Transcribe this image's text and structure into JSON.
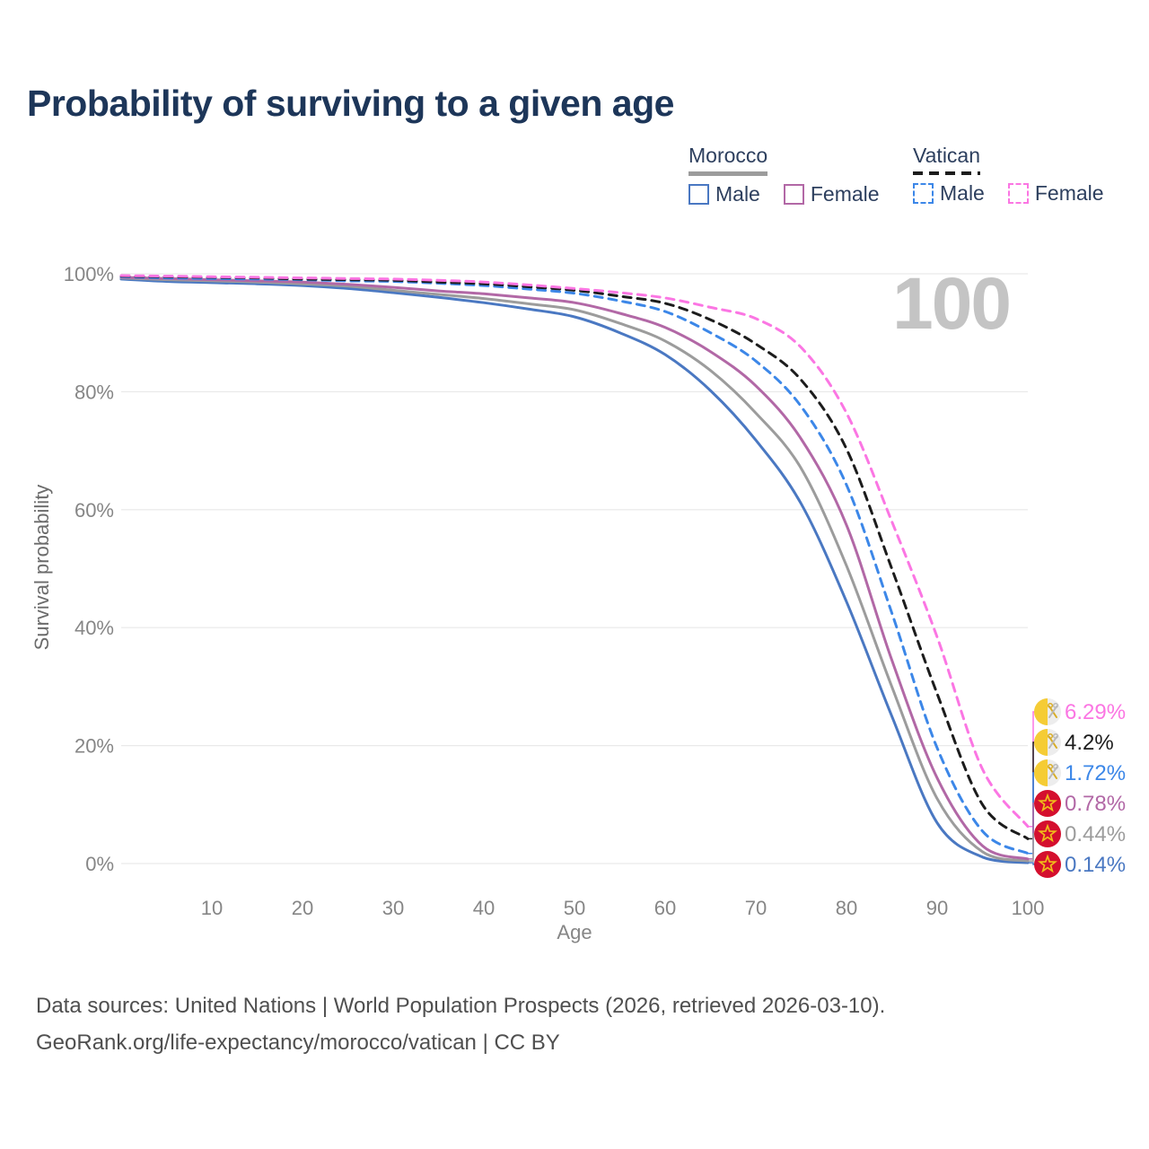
{
  "page": {
    "watermark_age": "100"
  },
  "title": "Probability of surviving to a given age",
  "legend": {
    "groups": [
      {
        "id": "morocco",
        "title": "Morocco",
        "line_color": "#9c9c9c",
        "line_style": "solid",
        "items": [
          {
            "label": "Male",
            "color": "#4a78c2",
            "style": "solid"
          },
          {
            "label": "Female",
            "color": "#b268a6",
            "style": "solid"
          }
        ]
      },
      {
        "id": "vatican",
        "title": "Vatican",
        "line_color": "#1c1c1c",
        "line_style": "dashed",
        "items": [
          {
            "label": "Male",
            "color": "#3c87e8",
            "style": "dashed"
          },
          {
            "label": "Female",
            "color": "#fb76e3",
            "style": "dashed"
          }
        ]
      }
    ]
  },
  "chart_data": {
    "type": "line",
    "title": "Probability of surviving to a given age",
    "xlabel": "Age",
    "ylabel": "Survival probability",
    "xlim": [
      0,
      100
    ],
    "ylim": [
      0,
      100
    ],
    "grid": "horizontal",
    "legend_position": "top-right",
    "x_ticks": [
      10,
      20,
      30,
      40,
      50,
      60,
      70,
      80,
      90,
      100
    ],
    "y_tick_values": [
      0,
      20,
      40,
      60,
      80,
      100
    ],
    "y_tick_labels": [
      "0%",
      "20%",
      "40%",
      "60%",
      "80%",
      "100%"
    ],
    "x": [
      0,
      5,
      10,
      15,
      20,
      25,
      30,
      35,
      40,
      45,
      50,
      55,
      60,
      65,
      70,
      75,
      80,
      85,
      90,
      95,
      100
    ],
    "series": [
      {
        "name": "Morocco Male",
        "country": "Morocco",
        "sex": "Male",
        "color": "#4a78c2",
        "dashed": false,
        "flag": "morocco",
        "end_value": 0.14,
        "end_label": "0.14%",
        "values": [
          99.1,
          98.7,
          98.5,
          98.3,
          98.0,
          97.5,
          96.8,
          96.0,
          95.1,
          94.0,
          92.7,
          90.0,
          86.3,
          80.2,
          71.8,
          61.0,
          44.4,
          25.0,
          6.9,
          1.1,
          0.14
        ]
      },
      {
        "name": "Morocco Both sexes",
        "country": "Morocco",
        "sex": "Both",
        "color": "#9c9c9c",
        "dashed": false,
        "flag": "morocco",
        "end_value": 0.44,
        "end_label": "0.44%",
        "values": [
          99.3,
          99.0,
          98.8,
          98.6,
          98.3,
          97.9,
          97.2,
          96.5,
          95.8,
          94.9,
          93.9,
          91.6,
          88.6,
          83.6,
          76.4,
          67.0,
          50.5,
          30.0,
          11.0,
          2.0,
          0.44
        ]
      },
      {
        "name": "Morocco Female",
        "country": "Morocco",
        "sex": "Female",
        "color": "#b268a6",
        "dashed": false,
        "flag": "morocco",
        "end_value": 0.78,
        "end_label": "0.78%",
        "values": [
          99.4,
          99.2,
          99.0,
          98.8,
          98.6,
          98.2,
          97.7,
          97.1,
          96.6,
          95.9,
          95.1,
          93.3,
          90.9,
          86.8,
          81.0,
          72.0,
          57.4,
          34.5,
          14.5,
          3.0,
          0.78
        ]
      },
      {
        "name": "Vatican Male",
        "country": "Vatican",
        "sex": "Male",
        "color": "#3c87e8",
        "dashed": true,
        "flag": "vatican",
        "end_value": 1.72,
        "end_label": "1.72%",
        "values": [
          99.5,
          99.3,
          99.2,
          99.1,
          99.0,
          98.8,
          98.7,
          98.4,
          98.0,
          97.4,
          96.7,
          95.4,
          93.6,
          90.0,
          85.2,
          77.5,
          64.2,
          42.5,
          19.6,
          5.5,
          1.72
        ]
      },
      {
        "name": "Vatican Both sexes",
        "country": "Vatican",
        "sex": "Both",
        "color": "#1c1c1c",
        "dashed": true,
        "flag": "vatican",
        "end_value": 4.2,
        "end_label": "4.2%",
        "values": [
          99.6,
          99.5,
          99.4,
          99.3,
          99.1,
          99.0,
          98.9,
          98.6,
          98.3,
          97.8,
          97.2,
          96.2,
          95.0,
          92.2,
          88.1,
          82.0,
          70.3,
          50.0,
          28.8,
          10.0,
          4.2
        ]
      },
      {
        "name": "Vatican Female",
        "country": "Vatican",
        "sex": "Female",
        "color": "#fb76e3",
        "dashed": true,
        "flag": "vatican",
        "end_value": 6.29,
        "end_label": "6.29%",
        "values": [
          99.7,
          99.6,
          99.5,
          99.4,
          99.3,
          99.2,
          99.1,
          98.9,
          98.6,
          98.1,
          97.5,
          96.8,
          95.9,
          94.3,
          92.4,
          87.5,
          76.4,
          58.0,
          38.4,
          16.0,
          6.29
        ]
      }
    ]
  },
  "footer": {
    "line1": "Data sources: United Nations | World Population Prospects (2026, retrieved 2026-03-10).",
    "line2": "GeoRank.org/life-expectancy/morocco/vatican | CC BY"
  }
}
